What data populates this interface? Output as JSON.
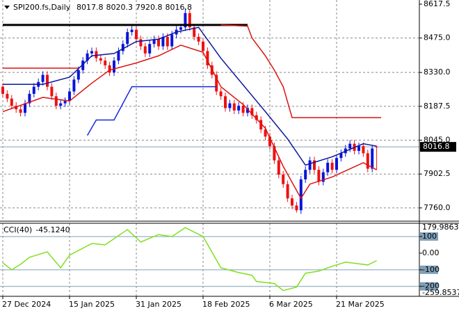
{
  "chart_data": [
    {
      "type": "candlestick",
      "title": "SPI200.fs,Daily",
      "open": [
        8270,
        8240,
        8220,
        8190,
        8175,
        8160,
        8200,
        8240,
        8270,
        8290,
        8320,
        8270,
        8230,
        8190,
        8200,
        8210,
        8250,
        8300,
        8340,
        8380,
        8410,
        8420,
        8390,
        8380,
        8360,
        8330,
        8380,
        8420,
        8450,
        8500,
        8510,
        8470,
        8440,
        8410,
        8450,
        8470,
        8440,
        8480,
        8440,
        8490,
        8510,
        8520,
        8580,
        8520,
        8480,
        8460,
        8420,
        8360,
        8320,
        8250,
        8230,
        8180,
        8200,
        8170,
        8190,
        8160,
        8180,
        8150,
        8130,
        8090,
        8060,
        8020,
        7960,
        7900,
        7860,
        7800,
        7770,
        7750,
        7880,
        7920,
        7960,
        7920,
        7870,
        7910,
        7950,
        7920,
        7970,
        7990,
        8010,
        8030,
        8000,
        8020,
        7990,
        7925,
        8017.8
      ],
      "high": [
        8285,
        8255,
        8235,
        8205,
        8190,
        8215,
        8255,
        8285,
        8305,
        8335,
        8335,
        8285,
        8245,
        8215,
        8225,
        8265,
        8315,
        8355,
        8395,
        8425,
        8435,
        8435,
        8405,
        8395,
        8375,
        8395,
        8435,
        8465,
        8515,
        8525,
        8525,
        8485,
        8455,
        8465,
        8485,
        8485,
        8495,
        8495,
        8505,
        8525,
        8535,
        8600,
        8595,
        8535,
        8495,
        8475,
        8435,
        8375,
        8335,
        8265,
        8245,
        8215,
        8215,
        8205,
        8205,
        8195,
        8195,
        8165,
        8145,
        8105,
        8075,
        8035,
        7975,
        7915,
        7875,
        7815,
        7785,
        7895,
        7935,
        7975,
        7975,
        7935,
        7925,
        7965,
        7965,
        7985,
        8005,
        8025,
        8045,
        8045,
        8035,
        8035,
        8005,
        8025,
        8020.3
      ],
      "low": [
        8225,
        8205,
        8175,
        8160,
        8145,
        8145,
        8185,
        8225,
        8255,
        8275,
        8255,
        8215,
        8175,
        8175,
        8185,
        8195,
        8235,
        8285,
        8325,
        8365,
        8395,
        8375,
        8365,
        8345,
        8315,
        8315,
        8365,
        8405,
        8435,
        8485,
        8455,
        8425,
        8395,
        8395,
        8435,
        8425,
        8425,
        8425,
        8425,
        8475,
        8495,
        8505,
        8505,
        8465,
        8445,
        8405,
        8345,
        8305,
        8235,
        8215,
        8165,
        8165,
        8155,
        8155,
        8145,
        8145,
        8135,
        8115,
        8075,
        8045,
        8005,
        7945,
        7885,
        7845,
        7785,
        7755,
        7740,
        7735,
        7865,
        7905,
        7905,
        7855,
        7855,
        7895,
        7905,
        7905,
        7955,
        7975,
        7995,
        7985,
        7985,
        7975,
        7910,
        7910,
        7920.8
      ],
      "close": [
        8240,
        8220,
        8190,
        8175,
        8160,
        8200,
        8240,
        8270,
        8290,
        8320,
        8270,
        8230,
        8190,
        8200,
        8210,
        8250,
        8300,
        8340,
        8380,
        8410,
        8420,
        8390,
        8380,
        8360,
        8330,
        8380,
        8420,
        8450,
        8500,
        8510,
        8470,
        8440,
        8410,
        8450,
        8470,
        8440,
        8480,
        8440,
        8490,
        8510,
        8520,
        8580,
        8520,
        8480,
        8460,
        8420,
        8360,
        8320,
        8250,
        8230,
        8180,
        8200,
        8170,
        8190,
        8160,
        8180,
        8150,
        8130,
        8090,
        8060,
        8020,
        7960,
        7900,
        7860,
        7800,
        7770,
        7750,
        7880,
        7920,
        7960,
        7920,
        7870,
        7910,
        7950,
        7920,
        7970,
        7990,
        8010,
        8030,
        8000,
        8020,
        7990,
        7925,
        8010,
        8016.8
      ],
      "up_color": "#0a14d8",
      "down_color": "#ee1111",
      "overlays": [
        {
          "color": "#0a14a0",
          "x": [
            0,
            9,
            15,
            20,
            25,
            30,
            35,
            39,
            44,
            49,
            55,
            59,
            64,
            68,
            74,
            81,
            84
          ],
          "values": [
            8280,
            8280,
            8310,
            8400,
            8410,
            8460,
            8470,
            8500,
            8520,
            8390,
            8255,
            8165,
            8050,
            7940,
            7975,
            8030,
            8020
          ]
        },
        {
          "color": "#dd1111",
          "x": [
            0,
            9,
            15,
            20,
            24,
            30,
            35,
            40,
            45,
            49,
            54,
            59,
            63,
            67,
            69,
            74,
            81,
            84
          ],
          "values": [
            8165,
            8225,
            8210,
            8285,
            8340,
            8370,
            8400,
            8445,
            8415,
            8270,
            8195,
            8095,
            7935,
            7800,
            7860,
            7890,
            7950,
            7920
          ]
        },
        {
          "color": "#000000",
          "x": [
            0,
            55
          ],
          "values": [
            8530,
            8530
          ]
        },
        {
          "color": "#dd1111",
          "x": [
            0,
            17
          ],
          "values": [
            8348,
            8348
          ]
        },
        {
          "color": "#dd1111",
          "x": [
            49,
            55,
            56,
            59,
            61,
            63,
            65,
            85
          ],
          "values": [
            8530,
            8525,
            8475,
            8400,
            8340,
            8270,
            8140,
            8140
          ]
        },
        {
          "color": "#1428dc",
          "x": [
            19,
            21,
            25,
            29,
            48
          ],
          "values": [
            8065,
            8130,
            8130,
            8270,
            8270
          ]
        }
      ],
      "current_price": 8016.8,
      "ylim": [
        7704,
        8635
      ],
      "yticks": [
        8617.5,
        {
          "value": 8475,
          "label": "8475.0"
        },
        {
          "value": 8330,
          "label": "8330.0"
        },
        8187.5,
        {
          "value": 8045,
          "label": "8045.0"
        },
        7902.5,
        {
          "value": 7760,
          "label": "7760.0"
        }
      ],
      "xticks": [
        {
          "value": 0,
          "label": "27 Dec 2024"
        },
        {
          "value": 15,
          "label": "15 Jan 2025"
        },
        {
          "value": 30,
          "label": "31 Jan 2025"
        },
        {
          "value": 45,
          "label": "18 Feb 2025"
        },
        {
          "value": 60,
          "label": "6 Mar 2025"
        },
        {
          "value": 75,
          "label": "21 Mar 2025"
        }
      ],
      "grid": true
    },
    {
      "type": "line",
      "title": "CCI(40)",
      "current": {
        "value": -45.124,
        "label": "-45.1240"
      },
      "color": "#7ee01e",
      "x": [
        0,
        2,
        4,
        6,
        10,
        13,
        15,
        20,
        23,
        28,
        31,
        35,
        38,
        41,
        45,
        49,
        53,
        56,
        57,
        61,
        63,
        66,
        68,
        71,
        74,
        77,
        82,
        84
      ],
      "values": [
        -58,
        -100,
        -67,
        -25,
        8,
        -88,
        -12,
        58,
        50,
        142,
        67,
        112,
        100,
        154,
        100,
        -88,
        -117,
        -133,
        -171,
        -183,
        -225,
        -204,
        -121,
        -108,
        -79,
        -54,
        -71,
        -45.124
      ],
      "levels": [
        100,
        -100,
        -200
      ],
      "ylim": [
        -259.8537,
        179.9863
      ],
      "yticks": [
        179.9863,
        100,
        {
          "value": 0,
          "label": "0.00"
        },
        -100,
        -200,
        -259.8537
      ]
    }
  ]
}
